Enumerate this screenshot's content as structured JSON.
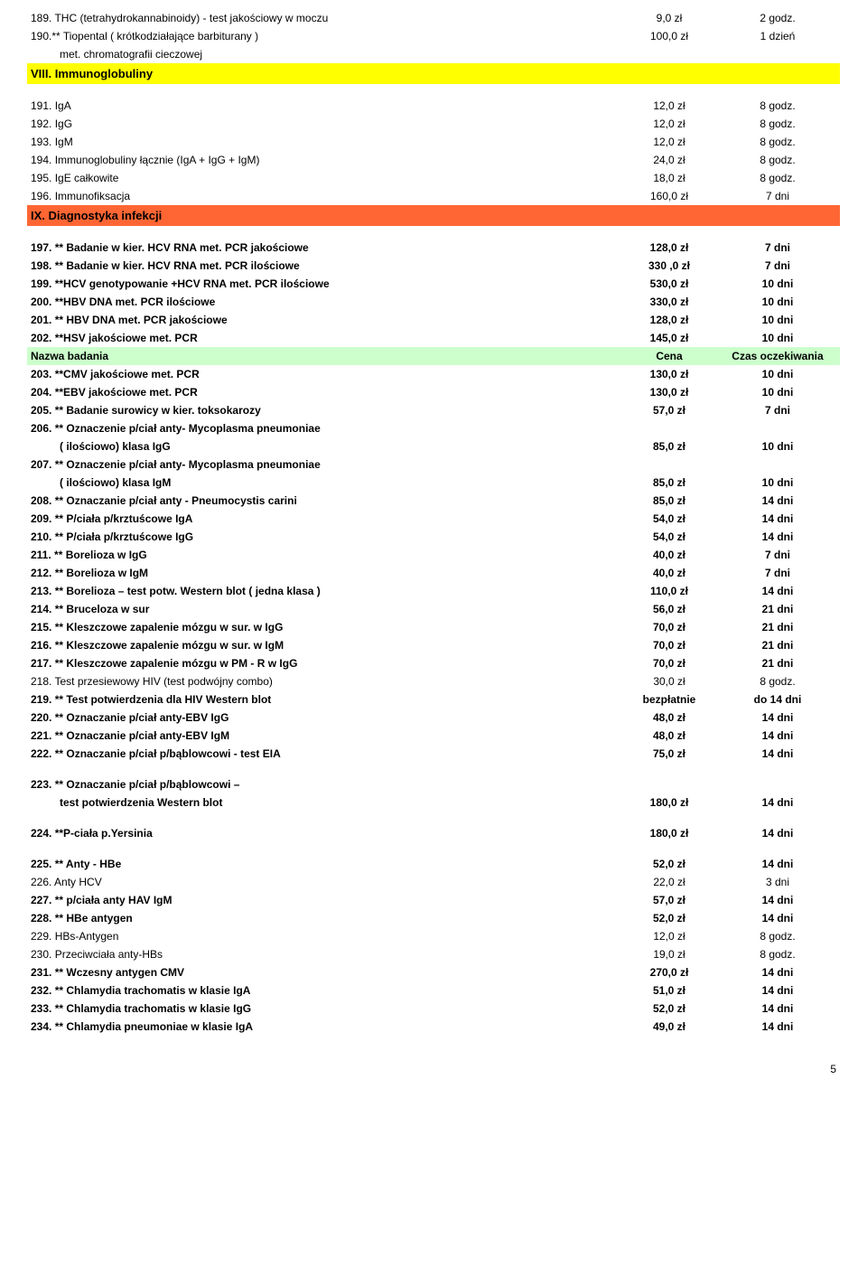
{
  "rows": [
    {
      "type": "data",
      "bold": false,
      "name": "189. THC (tetrahydrokannabinoidy) - test jakościowy w moczu",
      "price": "9,0 zł",
      "time": "2 godz."
    },
    {
      "type": "data",
      "bold": false,
      "name": "190.** Tiopental ( krótkodziałające barbiturany )",
      "price": "100,0 zł",
      "time": "1 dzień"
    },
    {
      "type": "cont",
      "bold": false,
      "name": "met. chromatografii cieczowej"
    },
    {
      "type": "section",
      "bg": "yellow",
      "name": "VIII.  Immunoglobuliny"
    },
    {
      "type": "spacer"
    },
    {
      "type": "data",
      "bold": false,
      "name": "191. IgA",
      "price": "12,0 zł",
      "time": "8 godz."
    },
    {
      "type": "data",
      "bold": false,
      "name": "192. IgG",
      "price": "12,0 zł",
      "time": "8 godz."
    },
    {
      "type": "data",
      "bold": false,
      "name": "193. IgM",
      "price": "12,0 zł",
      "time": "8 godz."
    },
    {
      "type": "data",
      "bold": false,
      "name": "194. Immunoglobuliny łącznie (IgA + IgG + IgM)",
      "price": "24,0 zł",
      "time": "8 godz."
    },
    {
      "type": "data",
      "bold": false,
      "name": "195. IgE całkowite",
      "price": "18,0 zł",
      "time": "8 godz."
    },
    {
      "type": "data",
      "bold": false,
      "name": "196. Immunofiksacja",
      "price": "160,0 zł",
      "time": "7 dni"
    },
    {
      "type": "section",
      "bg": "orange",
      "name": "IX. Diagnostyka infekcji"
    },
    {
      "type": "spacer"
    },
    {
      "type": "data",
      "bold": true,
      "name": "197. ** Badanie w kier. HCV RNA met. PCR jakościowe",
      "price": "128,0 zł",
      "time": "7 dni"
    },
    {
      "type": "data",
      "bold": true,
      "name": "198. ** Badanie w kier. HCV RNA met. PCR ilościowe",
      "price": "330 ,0 zł",
      "time": "7 dni"
    },
    {
      "type": "data",
      "bold": true,
      "name": "199. **HCV genotypowanie +HCV RNA met. PCR ilościowe",
      "price": "530,0 zł",
      "time": "10 dni"
    },
    {
      "type": "data",
      "bold": true,
      "name": "200. **HBV DNA met. PCR ilościowe",
      "price": "330,0 zł",
      "time": "10 dni"
    },
    {
      "type": "data",
      "bold": true,
      "name": "201. ** HBV DNA met. PCR jakościowe",
      "price": "128,0 zł",
      "time": "10 dni"
    },
    {
      "type": "data",
      "bold": true,
      "name": "202. **HSV jakościowe met. PCR",
      "price": "145,0 zł",
      "time": "10 dni"
    },
    {
      "type": "header",
      "bg": "green",
      "name": "Nazwa badania",
      "price": "Cena",
      "time": "Czas oczekiwania"
    },
    {
      "type": "data",
      "bold": true,
      "name": "203. **CMV jakościowe met. PCR",
      "price": "130,0 zł",
      "time": "10 dni"
    },
    {
      "type": "data",
      "bold": true,
      "name": "204. **EBV jakościowe met. PCR",
      "price": "130,0 zł",
      "time": "10 dni"
    },
    {
      "type": "data",
      "bold": true,
      "name": "205. ** Badanie surowicy w kier. toksokarozy",
      "price": "57,0 zł",
      "time": "7 dni"
    },
    {
      "type": "data",
      "bold": true,
      "name": "206. ** Oznaczenie p/ciał anty- Mycoplasma pneumoniae",
      "price": "",
      "time": ""
    },
    {
      "type": "data-cont",
      "bold": true,
      "name": "( ilościowo) klasa IgG",
      "price": "85,0 zł",
      "time": "10 dni"
    },
    {
      "type": "data",
      "bold": true,
      "name": "207. ** Oznaczenie p/ciał anty- Mycoplasma pneumoniae",
      "price": "",
      "time": ""
    },
    {
      "type": "data-cont",
      "bold": true,
      "name": "( ilościowo) klasa IgM",
      "price": "85,0 zł",
      "time": "10 dni"
    },
    {
      "type": "data",
      "bold": true,
      "name": "208. ** Oznaczanie p/ciał anty - Pneumocystis carini",
      "price": "85,0 zł",
      "time": "14 dni"
    },
    {
      "type": "data",
      "bold": true,
      "name": "209. **  P/ciała p/krztuścowe IgA",
      "price": "54,0 zł",
      "time": "14 dni"
    },
    {
      "type": "data",
      "bold": true,
      "name": "210. ** P/ciała p/krztuścowe IgG",
      "price": "54,0 zł",
      "time": "14 dni"
    },
    {
      "type": "data",
      "bold": true,
      "name": "211. ** Borelioza w IgG",
      "price": "40,0 zł",
      "time": "7 dni"
    },
    {
      "type": "data",
      "bold": true,
      "name": "212. ** Borelioza w IgM",
      "price": "40,0 zł",
      "time": "7 dni"
    },
    {
      "type": "data",
      "bold": true,
      "name": "213. ** Borelioza – test potw. Western blot ( jedna klasa )",
      "price": "110,0 zł",
      "time": "14 dni"
    },
    {
      "type": "data",
      "bold": true,
      "name": "214. ** Bruceloza w sur",
      "price": "56,0 zł",
      "time": "21 dni"
    },
    {
      "type": "data",
      "bold": true,
      "name": "215. ** Kleszczowe zapalenie mózgu w sur. w IgG",
      "price": "70,0 zł",
      "time": "21 dni"
    },
    {
      "type": "data",
      "bold": true,
      "name": "216. ** Kleszczowe zapalenie mózgu w sur. w IgM",
      "price": "70,0 zł",
      "time": "21 dni"
    },
    {
      "type": "data",
      "bold": true,
      "name": "217. ** Kleszczowe zapalenie mózgu w PM - R w IgG",
      "price": "70,0 zł",
      "time": "21 dni"
    },
    {
      "type": "data",
      "bold": false,
      "name": "218. Test przesiewowy HIV (test podwójny combo)",
      "price": "30,0 zł",
      "time": "8 godz."
    },
    {
      "type": "data",
      "bold": true,
      "name": "219. ** Test potwierdzenia dla HIV  Western blot",
      "price": "bezpłatnie",
      "time": "do 14 dni"
    },
    {
      "type": "data",
      "bold": true,
      "name": "220. ** Oznaczanie p/ciał anty-EBV IgG",
      "price": "48,0 zł",
      "time": "14 dni"
    },
    {
      "type": "data",
      "bold": true,
      "name": "221. ** Oznaczanie p/ciał anty-EBV IgM",
      "price": "48,0 zł",
      "time": "14 dni"
    },
    {
      "type": "data",
      "bold": true,
      "name": "222. ** Oznaczanie p/ciał p/bąblowcowi - test EIA",
      "price": "75,0 zł",
      "time": "14 dni"
    },
    {
      "type": "spacer"
    },
    {
      "type": "data",
      "bold": true,
      "name": "223. ** Oznaczanie p/ciał p/bąblowcowi –",
      "price": "",
      "time": ""
    },
    {
      "type": "data-cont",
      "bold": true,
      "name": "test potwierdzenia Western blot",
      "price": "180,0 zł",
      "time": "14 dni"
    },
    {
      "type": "spacer"
    },
    {
      "type": "data",
      "bold": true,
      "name": "224. **P-ciała p.Yersinia",
      "price": "180,0 zł",
      "time": "14 dni"
    },
    {
      "type": "spacer"
    },
    {
      "type": "data",
      "bold": true,
      "name": "225.  **  Anty - HBe",
      "price": "52,0 zł",
      "time": "14 dni"
    },
    {
      "type": "data",
      "bold": false,
      "name": "226.  Anty HCV",
      "price": "22,0 zł",
      "time": "3 dni"
    },
    {
      "type": "data",
      "bold": true,
      "name": "227. ** p/ciała  anty HAV IgM",
      "price": "57,0 zł",
      "time": "14 dni"
    },
    {
      "type": "data",
      "bold": true,
      "name": "228. ** HBe antygen",
      "price": "52,0 zł",
      "time": "14 dni"
    },
    {
      "type": "data",
      "bold": false,
      "name": "229. HBs-Antygen",
      "price": "12,0 zł",
      "time": "8 godz."
    },
    {
      "type": "data",
      "bold": false,
      "name": "230. Przeciwciała anty-HBs",
      "price": "19,0 zł",
      "time": "8 godz."
    },
    {
      "type": "data",
      "bold": true,
      "name": "231. ** Wczesny antygen CMV",
      "price": "270,0 zł",
      "time": "14 dni"
    },
    {
      "type": "data",
      "bold": true,
      "name": "232. ** Chlamydia trachomatis w klasie IgA",
      "price": "51,0 zł",
      "time": "14 dni"
    },
    {
      "type": "data",
      "bold": true,
      "name": "233. ** Chlamydia trachomatis w klasie IgG",
      "price": "52,0 zł",
      "time": "14 dni"
    },
    {
      "type": "data",
      "bold": true,
      "name": "234. ** Chlamydia pneumoniae w klasie IgA",
      "price": "49,0 zł",
      "time": "14 dni"
    }
  ],
  "pageNumber": "5"
}
